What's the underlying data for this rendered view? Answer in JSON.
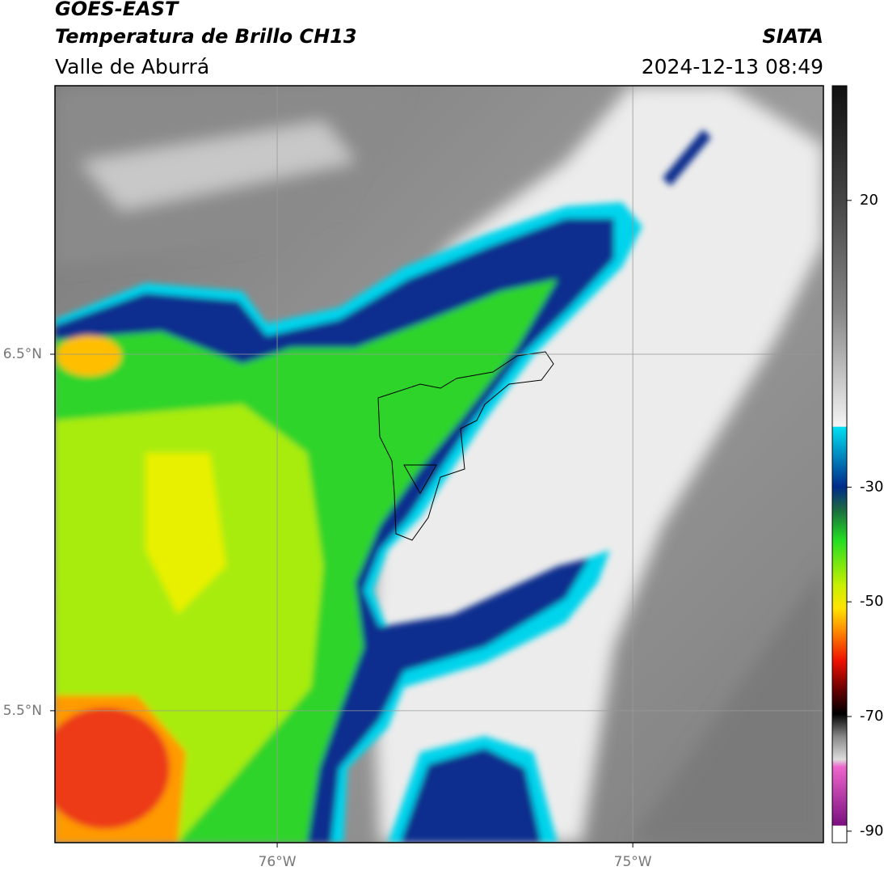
{
  "header": {
    "satellite": "GOES-EAST",
    "product": "Temperatura de Brillo CH13",
    "region": "Valle de Aburrá",
    "agency": "SIATA",
    "datetime": "2024-12-13 08:49"
  },
  "map": {
    "xlim": [
      -76.625,
      -74.464
    ],
    "ylim": [
      5.13,
      7.253
    ],
    "xticks": [
      {
        "value": -76,
        "label": "76°W"
      },
      {
        "value": -75,
        "label": "75°W"
      }
    ],
    "yticks": [
      {
        "value": 6.5,
        "label": "6.5°N"
      },
      {
        "value": 5.5,
        "label": "5.5°N"
      }
    ],
    "grid": true
  },
  "colorbar": {
    "clim": [
      -92,
      40
    ],
    "ticks": [
      20,
      -30,
      -50,
      -70,
      -90
    ]
  }
}
